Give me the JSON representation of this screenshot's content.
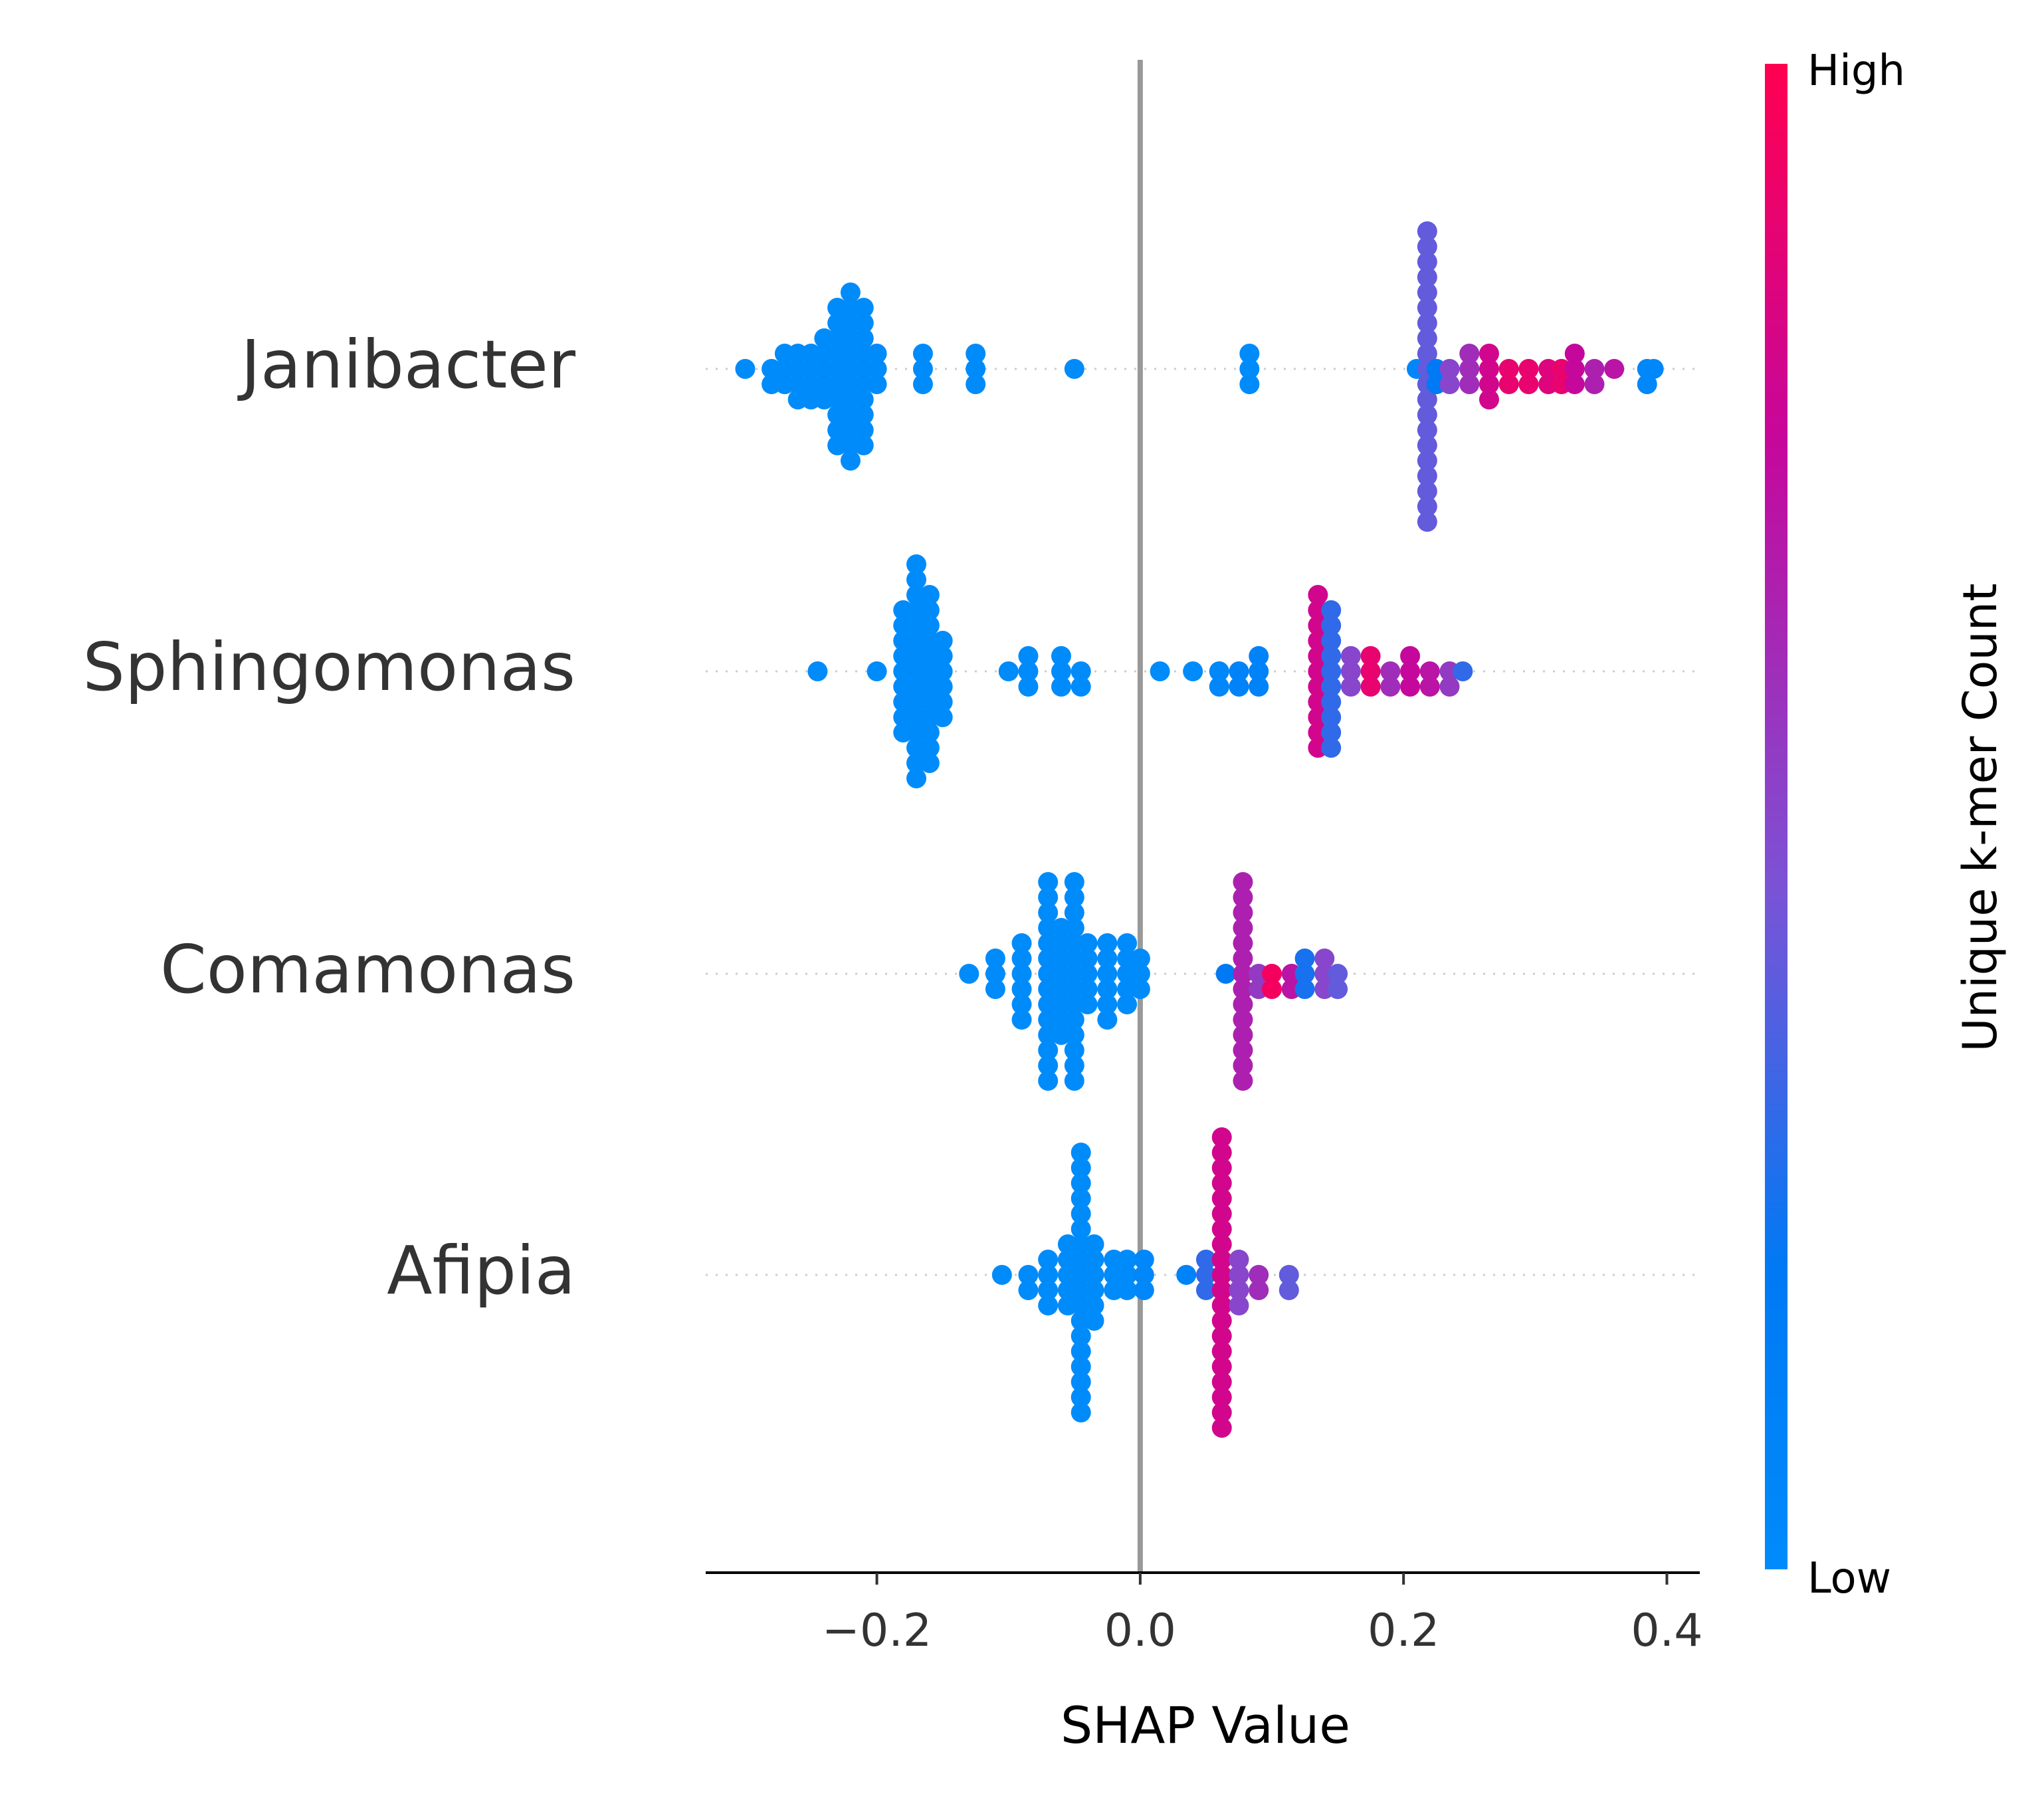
{
  "chart_data": {
    "type": "scatter",
    "subtype": "shap-beeswarm",
    "xlabel": "SHAP Value",
    "xlim": [
      -0.33,
      0.425
    ],
    "x_ticks": [
      -0.2,
      0.0,
      0.2,
      0.4
    ],
    "x_tick_labels": [
      "−0.2",
      "0.0",
      "0.2",
      "0.4"
    ],
    "zero_line": 0.0,
    "grid": false,
    "colorbar": {
      "label": "Unique k-mer Count",
      "high_label": "High",
      "low_label": "Low",
      "low_color": "#008bfb",
      "high_color": "#ff0051"
    },
    "features": [
      {
        "name": "Janibacter",
        "groups": [
          {
            "x": -0.3,
            "n": 1,
            "c": 0
          },
          {
            "x": -0.28,
            "n": 2,
            "c": 0
          },
          {
            "x": -0.27,
            "n": 3,
            "c": 0
          },
          {
            "x": -0.26,
            "n": 4,
            "c": 0
          },
          {
            "x": -0.25,
            "n": 4,
            "c": 0
          },
          {
            "x": -0.24,
            "n": 5,
            "c": 0
          },
          {
            "x": -0.23,
            "n": 10,
            "c": 0
          },
          {
            "x": -0.22,
            "n": 12,
            "c": 0
          },
          {
            "x": -0.21,
            "n": 10,
            "c": 0
          },
          {
            "x": -0.2,
            "n": 3,
            "c": 0
          },
          {
            "x": -0.165,
            "n": 3,
            "c": 0
          },
          {
            "x": -0.125,
            "n": 3,
            "c": 0
          },
          {
            "x": -0.05,
            "n": 1,
            "c": 0
          },
          {
            "x": 0.083,
            "n": 3,
            "c": 0
          },
          {
            "x": 0.21,
            "n": 1,
            "c": 0.05
          },
          {
            "x": 0.218,
            "n": 20,
            "c": 0.4
          },
          {
            "x": 0.225,
            "n": 2,
            "c": 0.2
          },
          {
            "x": 0.235,
            "n": 2,
            "c": 0.5
          },
          {
            "x": 0.25,
            "n": 3,
            "c": 0.6
          },
          {
            "x": 0.265,
            "n": 4,
            "c": 0.8
          },
          {
            "x": 0.28,
            "n": 2,
            "c": 0.9
          },
          {
            "x": 0.295,
            "n": 2,
            "c": 0.9
          },
          {
            "x": 0.31,
            "n": 2,
            "c": 0.85
          },
          {
            "x": 0.32,
            "n": 2,
            "c": 0.9
          },
          {
            "x": 0.33,
            "n": 3,
            "c": 0.75
          },
          {
            "x": 0.345,
            "n": 2,
            "c": 0.65
          },
          {
            "x": 0.36,
            "n": 1,
            "c": 0.7
          },
          {
            "x": 0.385,
            "n": 2,
            "c": 0.05
          },
          {
            "x": 0.39,
            "n": 1,
            "c": 0.05
          }
        ]
      },
      {
        "name": "Sphingomonas",
        "groups": [
          {
            "x": -0.245,
            "n": 1,
            "c": 0
          },
          {
            "x": -0.2,
            "n": 1,
            "c": 0
          },
          {
            "x": -0.18,
            "n": 9,
            "c": 0
          },
          {
            "x": -0.17,
            "n": 15,
            "c": 0
          },
          {
            "x": -0.16,
            "n": 12,
            "c": 0
          },
          {
            "x": -0.15,
            "n": 6,
            "c": 0
          },
          {
            "x": -0.1,
            "n": 1,
            "c": 0
          },
          {
            "x": -0.085,
            "n": 3,
            "c": 0
          },
          {
            "x": -0.06,
            "n": 3,
            "c": 0
          },
          {
            "x": -0.045,
            "n": 2,
            "c": 0
          },
          {
            "x": 0.015,
            "n": 1,
            "c": 0
          },
          {
            "x": 0.04,
            "n": 1,
            "c": 0
          },
          {
            "x": 0.06,
            "n": 2,
            "c": 0.05
          },
          {
            "x": 0.075,
            "n": 2,
            "c": 0.1
          },
          {
            "x": 0.09,
            "n": 3,
            "c": 0.1
          },
          {
            "x": 0.135,
            "n": 11,
            "c": 0.8
          },
          {
            "x": 0.145,
            "n": 10,
            "c": 0.3
          },
          {
            "x": 0.16,
            "n": 3,
            "c": 0.5
          },
          {
            "x": 0.175,
            "n": 3,
            "c": 0.9
          },
          {
            "x": 0.19,
            "n": 2,
            "c": 0.6
          },
          {
            "x": 0.205,
            "n": 3,
            "c": 0.75
          },
          {
            "x": 0.22,
            "n": 2,
            "c": 0.7
          },
          {
            "x": 0.235,
            "n": 2,
            "c": 0.55
          },
          {
            "x": 0.245,
            "n": 1,
            "c": 0.3
          }
        ]
      },
      {
        "name": "Comamonas",
        "groups": [
          {
            "x": -0.13,
            "n": 1,
            "c": 0
          },
          {
            "x": -0.11,
            "n": 3,
            "c": 0
          },
          {
            "x": -0.09,
            "n": 6,
            "c": 0
          },
          {
            "x": -0.07,
            "n": 14,
            "c": 0
          },
          {
            "x": -0.06,
            "n": 8,
            "c": 0
          },
          {
            "x": -0.05,
            "n": 14,
            "c": 0
          },
          {
            "x": -0.04,
            "n": 5,
            "c": 0
          },
          {
            "x": -0.025,
            "n": 6,
            "c": 0
          },
          {
            "x": -0.01,
            "n": 5,
            "c": 0
          },
          {
            "x": 0.0,
            "n": 3,
            "c": 0
          },
          {
            "x": 0.065,
            "n": 1,
            "c": 0.2
          },
          {
            "x": 0.078,
            "n": 14,
            "c": 0.65
          },
          {
            "x": 0.09,
            "n": 2,
            "c": 0.55
          },
          {
            "x": 0.1,
            "n": 2,
            "c": 0.95
          },
          {
            "x": 0.115,
            "n": 2,
            "c": 0.7
          },
          {
            "x": 0.125,
            "n": 3,
            "c": 0.25
          },
          {
            "x": 0.14,
            "n": 3,
            "c": 0.5
          },
          {
            "x": 0.15,
            "n": 2,
            "c": 0.4
          }
        ]
      },
      {
        "name": "Afipia",
        "groups": [
          {
            "x": -0.105,
            "n": 1,
            "c": 0
          },
          {
            "x": -0.085,
            "n": 2,
            "c": 0
          },
          {
            "x": -0.07,
            "n": 4,
            "c": 0
          },
          {
            "x": -0.055,
            "n": 5,
            "c": 0
          },
          {
            "x": -0.045,
            "n": 18,
            "c": 0
          },
          {
            "x": -0.035,
            "n": 6,
            "c": 0
          },
          {
            "x": -0.02,
            "n": 3,
            "c": 0
          },
          {
            "x": -0.01,
            "n": 3,
            "c": 0
          },
          {
            "x": 0.003,
            "n": 3,
            "c": 0.05
          },
          {
            "x": 0.035,
            "n": 1,
            "c": 0.1
          },
          {
            "x": 0.05,
            "n": 3,
            "c": 0.3
          },
          {
            "x": 0.062,
            "n": 20,
            "c": 0.8
          },
          {
            "x": 0.075,
            "n": 4,
            "c": 0.5
          },
          {
            "x": 0.09,
            "n": 2,
            "c": 0.6
          },
          {
            "x": 0.113,
            "n": 2,
            "c": 0.4
          }
        ]
      }
    ]
  }
}
